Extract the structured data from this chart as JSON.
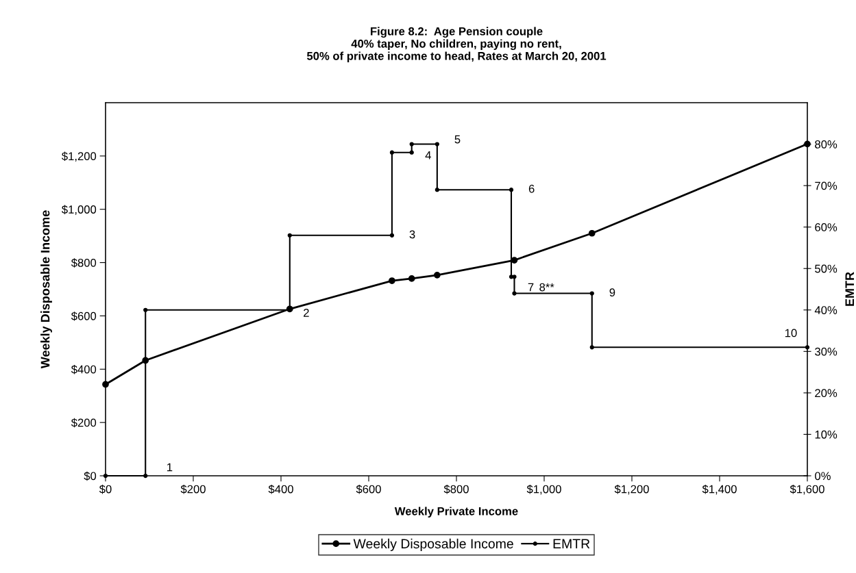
{
  "chart_data": {
    "type": "line",
    "title": "Figure 8.2:  Age Pension couple\n40% taper, No children, paying no rent,\n50% of private income to head, Rates at March 20, 2001",
    "xlabel": "Weekly Private Income",
    "ylabel": "Weekly Disposable Income",
    "y2label": "EMTR",
    "series": [
      {
        "name": "Weekly Disposable Income",
        "color": "#000000",
        "x": [
          0,
          91,
          420,
          653,
          698,
          756,
          932,
          1109,
          1600
        ],
        "values": [
          343,
          433,
          626,
          732,
          740,
          753,
          809,
          910,
          1245
        ]
      },
      {
        "name": "EMTR",
        "color": "#000000",
        "axis": "y2",
        "x": [
          0,
          91,
          91,
          420,
          420,
          653,
          653,
          698,
          698,
          756,
          756,
          925,
          925,
          932,
          932,
          1109,
          1109,
          1600
        ],
        "values": [
          0,
          0,
          40,
          40,
          58,
          58,
          78,
          78,
          80,
          80,
          69,
          69,
          48,
          48,
          44,
          44,
          31,
          31
        ]
      }
    ],
    "xlim": [
      0,
      1600
    ],
    "xticks": [
      {
        "value": 0,
        "label": "$0"
      },
      {
        "value": 200,
        "label": "$200"
      },
      {
        "value": 400,
        "label": "$400"
      },
      {
        "value": 600,
        "label": "$600"
      },
      {
        "value": 800,
        "label": "$800"
      },
      {
        "value": 1000,
        "label": "$1,000"
      },
      {
        "value": 1200,
        "label": "$1,200"
      },
      {
        "value": 1400,
        "label": "$1,400"
      },
      {
        "value": 1600,
        "label": "$1,600"
      }
    ],
    "ylim": [
      0,
      1400
    ],
    "yticks": [
      {
        "value": 0,
        "label": "$0"
      },
      {
        "value": 200,
        "label": "$200"
      },
      {
        "value": 400,
        "label": "$400"
      },
      {
        "value": 600,
        "label": "$600"
      },
      {
        "value": 800,
        "label": "$800"
      },
      {
        "value": 1000,
        "label": "$1,000"
      },
      {
        "value": 1200,
        "label": "$1,200"
      }
    ],
    "y2lim": [
      0,
      90
    ],
    "y2ticks": [
      {
        "value": 0,
        "label": "0%"
      },
      {
        "value": 10,
        "label": "10%"
      },
      {
        "value": 20,
        "label": "20%"
      },
      {
        "value": 30,
        "label": "30%"
      },
      {
        "value": 40,
        "label": "40%"
      },
      {
        "value": 50,
        "label": "50%"
      },
      {
        "value": 60,
        "label": "60%"
      },
      {
        "value": 70,
        "label": "70%"
      },
      {
        "value": 80,
        "label": "80%"
      }
    ],
    "annotations": [
      "1",
      "2",
      "3",
      "4",
      "5",
      "6",
      "7",
      "8**",
      "9",
      "10"
    ],
    "legend": "bottom",
    "marker": "circle",
    "line_style": "solid",
    "grid": false
  }
}
